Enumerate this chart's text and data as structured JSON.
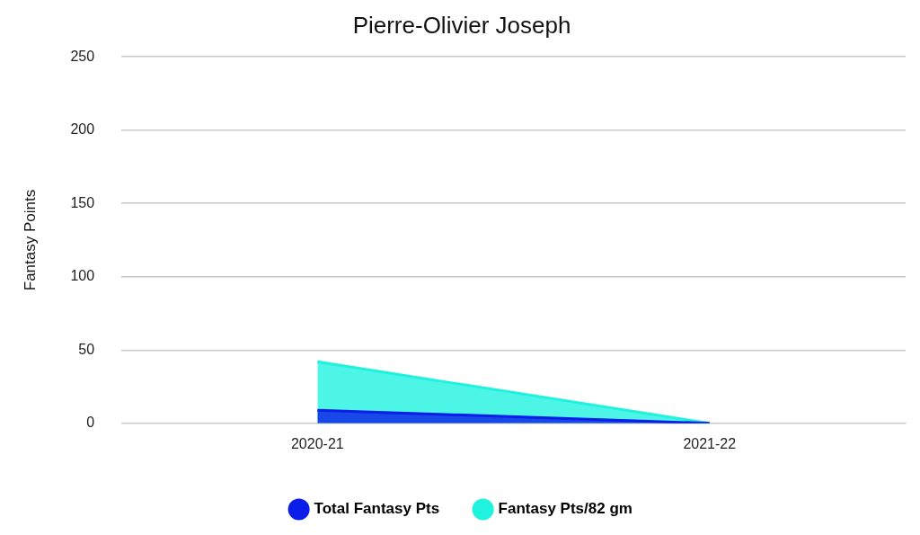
{
  "chart_data": {
    "type": "area",
    "title": "Pierre-Olivier Joseph",
    "ylabel": "Fantasy Points",
    "categories": [
      "2020-21",
      "2021-22"
    ],
    "series": [
      {
        "name": "Total Fantasy Pts",
        "color": "#0b1de8",
        "values": [
          9,
          0
        ]
      },
      {
        "name": "Fantasy Pts/82 gm",
        "color": "#1ff2de",
        "values": [
          42,
          0
        ]
      }
    ],
    "ylim": [
      0,
      250
    ],
    "yticks": [
      0,
      50,
      100,
      150,
      200,
      250
    ],
    "grid": "y",
    "legend": "bottom",
    "marker": "none"
  }
}
